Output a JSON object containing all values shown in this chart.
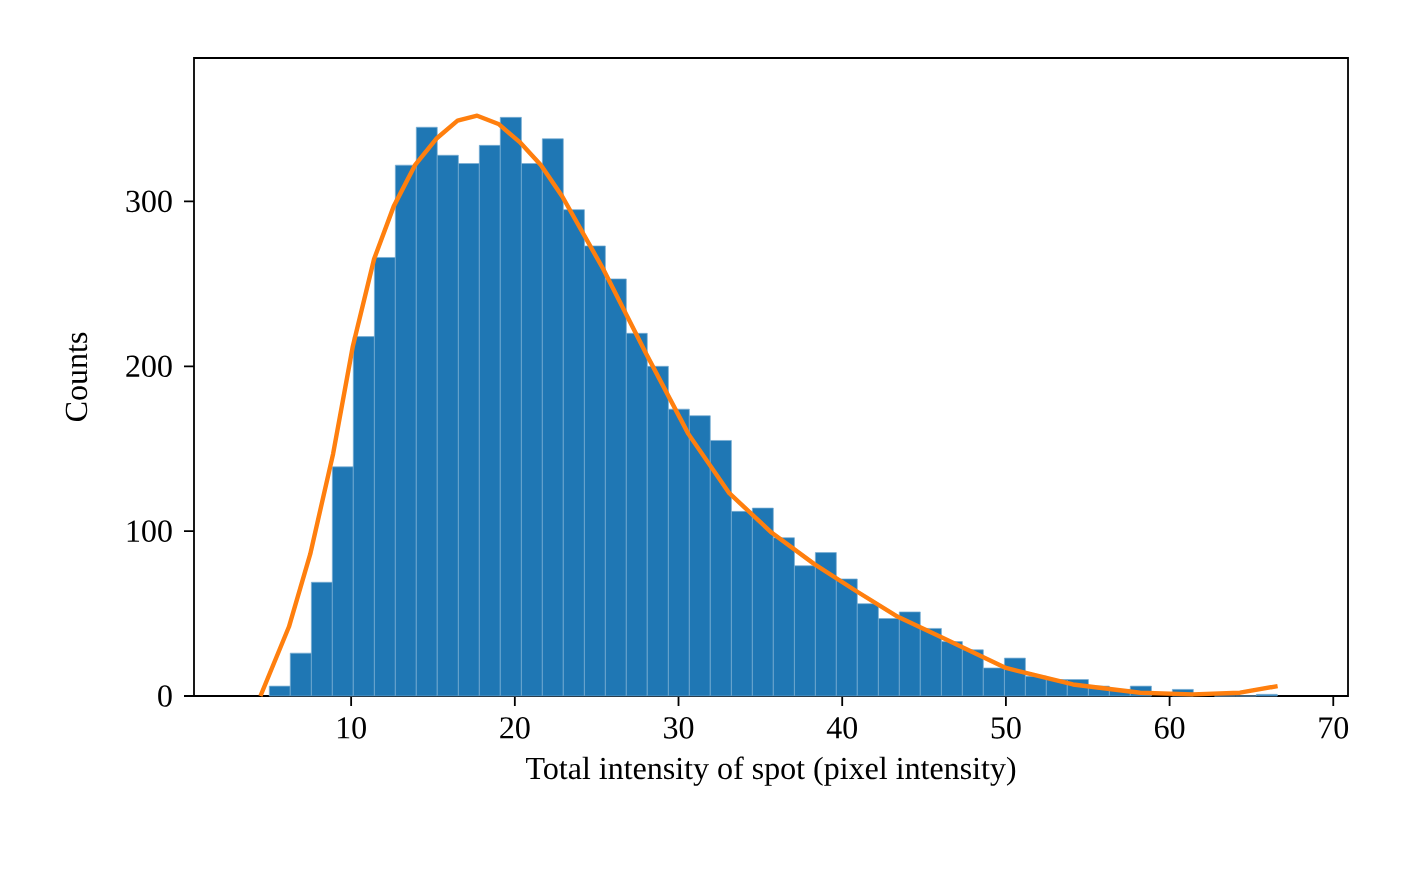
{
  "chart_data": {
    "type": "histogram",
    "xlabel": "Total intensity of spot (pixel intensity)",
    "ylabel": "Counts",
    "xlim": [
      0.4,
      70.9
    ],
    "ylim": [
      0,
      387
    ],
    "xticks": [
      10,
      20,
      30,
      40,
      50,
      60,
      70
    ],
    "yticks": [
      0,
      100,
      200,
      300
    ],
    "grid": false,
    "series": [
      {
        "color": "#1f77b4",
        "bins": [
          5.0,
          6.28,
          7.57,
          8.85,
          10.13,
          11.42,
          12.7,
          13.98,
          15.26,
          16.55,
          17.83,
          19.11,
          20.4,
          21.68,
          22.96,
          24.25,
          25.53,
          26.81,
          28.09,
          29.38,
          30.66,
          31.94,
          33.23,
          34.51,
          35.79,
          37.08,
          38.36,
          39.64,
          40.92,
          42.21,
          43.49,
          44.77,
          46.06,
          47.34,
          48.62,
          49.91,
          51.19,
          52.47,
          53.75,
          55.04,
          56.32,
          57.6,
          58.89,
          60.17,
          61.45,
          62.74,
          64.02,
          65.3,
          66.58
        ],
        "values": [
          6,
          26,
          69,
          139,
          218,
          266,
          322,
          345,
          328,
          323,
          334,
          351,
          323,
          338,
          295,
          273,
          253,
          220,
          200,
          174,
          170,
          155,
          112,
          114,
          96,
          79,
          87,
          71,
          56,
          47,
          51,
          41,
          33,
          28,
          17,
          23,
          12,
          10,
          10,
          6,
          4,
          6,
          null,
          4,
          null,
          0,
          0,
          1
        ]
      },
      {
        "type": "line",
        "color": "#ff7f0e",
        "marker": "none",
        "line_style": "solid",
        "x": [
          4.46,
          6.2,
          7.5,
          8.9,
          10.1,
          11.4,
          12.6,
          13.9,
          15.2,
          16.5,
          17.7,
          19.0,
          20.3,
          21.6,
          22.9,
          25.4,
          28.0,
          30.6,
          33.1,
          35.7,
          38.3,
          40.8,
          43.4,
          46.0,
          50.0,
          54.1,
          58.2,
          61.4,
          64.3,
          66.6
        ],
        "values": [
          0,
          42,
          86,
          147,
          212,
          265,
          297,
          322,
          338,
          349,
          352,
          347,
          336,
          322,
          303,
          259,
          208,
          159,
          123,
          99,
          80,
          64,
          48,
          36,
          17,
          7,
          2,
          1,
          2,
          6
        ]
      }
    ]
  }
}
